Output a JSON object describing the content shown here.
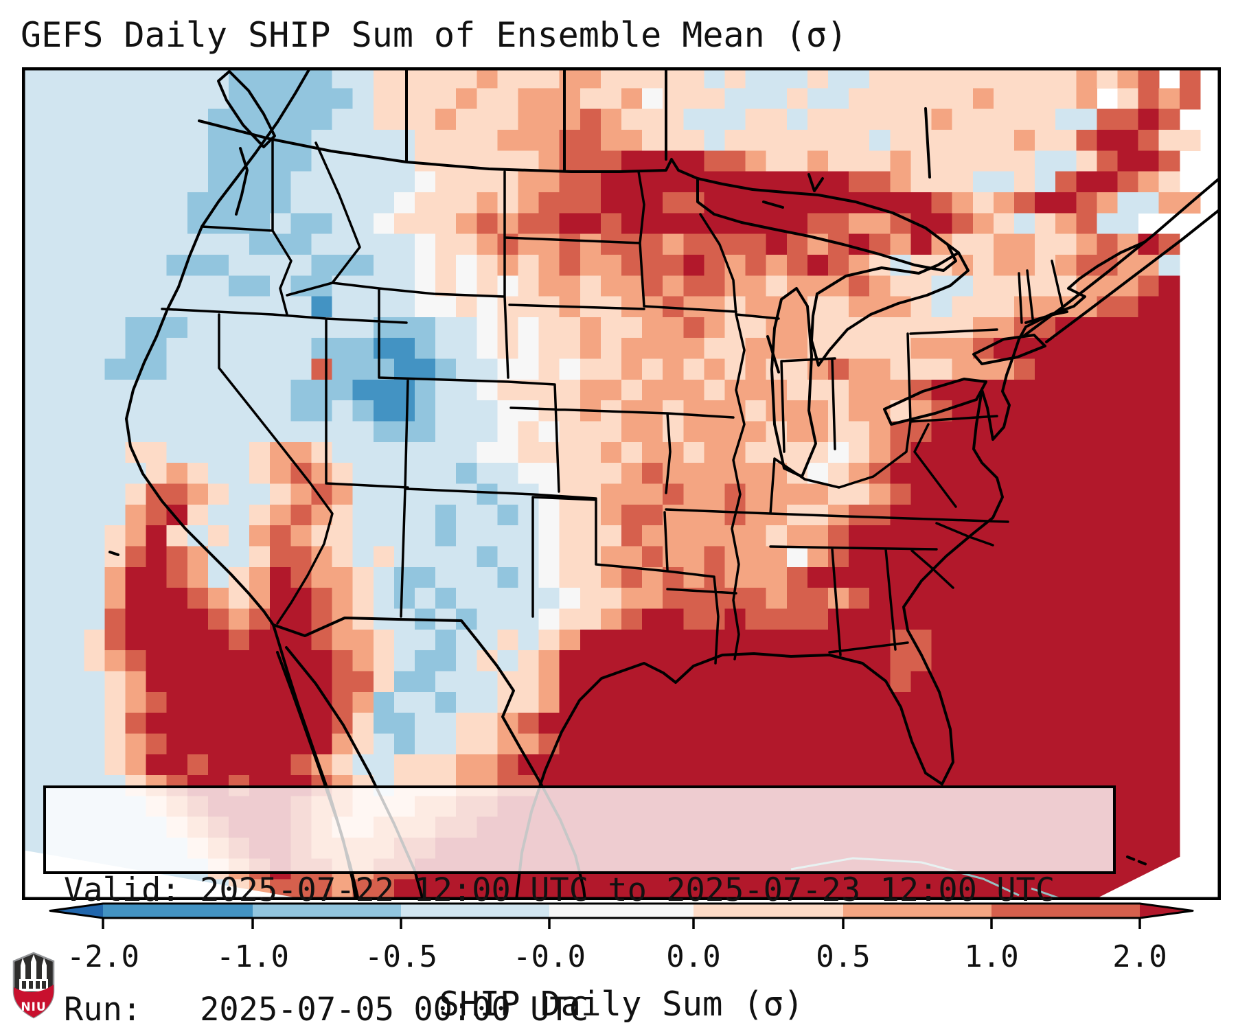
{
  "title": "GEFS Daily SHIP Sum of Ensemble Mean (σ)",
  "info_box": {
    "valid_line": "Valid: 2025-07-22 12:00 UTC to 2025-07-23 12:00 UTC",
    "run_line": "Run:   2025-07-05 00:00 UTC"
  },
  "colorbar": {
    "label": "SHIP Daily Sum (σ)",
    "tick_labels": [
      "-2.0",
      "-1.0",
      "-0.5",
      "-0.0",
      "0.0",
      "0.5",
      "1.0",
      "2.0"
    ],
    "segment_colors": [
      "#4393c3",
      "#92c5de",
      "#d1e5f0",
      "#f7f7f7",
      "#fddbc7",
      "#f4a582",
      "#d6604d"
    ],
    "under_color": "#2166ac",
    "over_color": "#b2182b"
  },
  "logo": {
    "text": "NIU",
    "shield_dark": "#2e2d2c",
    "shield_red": "#c8102e",
    "shield_edge": "#939598"
  },
  "chart_data": {
    "type": "heatmap",
    "title": "GEFS Daily SHIP Sum of Ensemble Mean (σ)",
    "valid": "2025-07-22 12:00 UTC to 2025-07-23 12:00 UTC",
    "run": "2025-07-05 00:00 UTC",
    "colorbar_label": "SHIP Daily Sum (σ)",
    "levels": [
      -2.0,
      -1.0,
      -0.5,
      -0.0,
      0.0,
      0.5,
      1.0,
      2.0
    ],
    "extend": "both",
    "palette": [
      "#2166ac",
      "#4393c3",
      "#92c5de",
      "#d1e5f0",
      "#f7f7f7",
      "#fddbc7",
      "#f4a582",
      "#d6604d",
      "#b2182b"
    ],
    "grid": {
      "cols": 58,
      "rows": 40,
      "legend": "each digit = palette index; 0=<-2σ ... 8=>+2σ; coarse ensemble-mean field over North America",
      "cells": [
        "3333333333222223355555655566555553533353355555555556567 7",
        "3333333333222222355556556665564555333533555555655556 5767",
        "33333333322222233555655566676555333553555555655555337787 ",
        "333333333222223333355556667766555355555553555555655788755",
        "33333333322222333335555556777888877655655565555553357887 ",
        "33333333322223333334555566778888888888887765553353788765 ",
        "333333332222233333455565677788877888888888887656788763366",
        "333333332222322334555676778878888888887766788765356733   ",
        "33333333333222333334556766767776777787678768655665567687 ",
        "33333332223333222334545656766777876767876535565665677663 ",
        "33333333332232233334545456656676776656667655335555566678 ",
        "33333333333333133334454555655667665666556665355566667788 ",
        "33333222333333333222334545565566765566555555556677888888 ",
        "33333223333333222112334545565666655666555556667888888888 ",
        "33332223333333722211233445455656565655676655566678888888 ",
        "33333333333332221112334555566566656665556667888888888888 ",
        "33333333333332232112333445565665666566656656788888888888 ",
        "33333333333333333222333454555665666656655677888888888888 ",
        "33333553333566533333334455556566566555545678888888888888 ",
        "33333356533567653333323344555676666665456788888888888888 ",
        "33333577653356763333332334556667667666655678888888888888 ",
        "33333678533567653333233234556776667665567788888888888888 ",
        "33335685353676553333233334555766666656678888888888888888 ",
        "33335787633577653533332334556676676664678888888888888888 ",
        "33336887635687665322333234556767676667888888888888888888 ",
        "33336888765688765323233333455667777767767888888888888888 ",
        "33337888876788765332323334556788778777788888888888888888 ",
        "33357888887888766533233535688888888888888877888888888888 ",
        "33356788888888876532235356888888888888888877888888888888 ",
        "33335688888888877522333556888888888888888878888888888888 ",
        "33335678888888876233233556888888888888888888888888888888 ",
        "33335788888888875223355678888888888888888888888888888888 ",
        "33335678888888865323355667888888888888888888888888888888 ",
        "33335688788887653355566788888888888888888888888888888888 ",
        "33333567887888765355566778888888888888888888888888888888 ",
        "33333356788887665556677888888888888888888888888888888888 ",
        "33333335678887655666778888888888888888888888888888888888 ",
        "33333333567887666677888888888888888888888888888888888888 ",
        "33333333356787766778888888888888888888888888888888888888 ",
        "33333333335677767788888888888888888888888888888888888888 "
      ]
    }
  }
}
